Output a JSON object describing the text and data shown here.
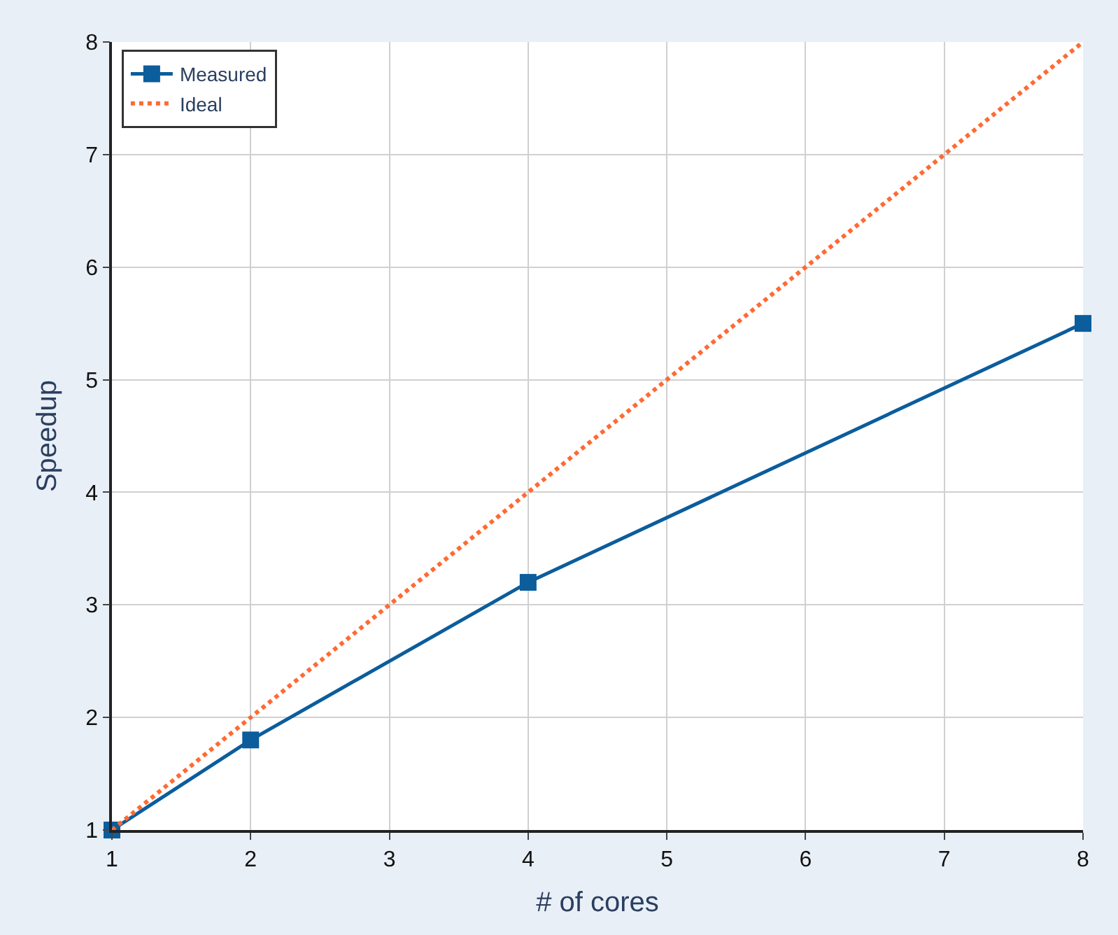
{
  "chart_data": {
    "type": "line",
    "xlabel": "# of cores",
    "ylabel": "Speedup",
    "xlim": [
      1,
      8
    ],
    "xticks": [
      1,
      2,
      3,
      4,
      5,
      6,
      7,
      8
    ],
    "ylim": [
      1,
      8
    ],
    "yticks": [
      1,
      2,
      3,
      4,
      5,
      6,
      7,
      8
    ],
    "grid": true,
    "legend": "top left",
    "series": [
      {
        "name": "Measured",
        "color": "#0b5d9c",
        "x": [
          1,
          2,
          4,
          8
        ],
        "values": [
          1,
          1.8,
          3.2,
          5.5
        ],
        "marker": "square",
        "line_style": "solid"
      },
      {
        "name": "Ideal",
        "color": "#ff6a33",
        "x": [
          1,
          8
        ],
        "values": [
          1,
          8
        ],
        "marker": "none",
        "line_style": "dotted"
      }
    ]
  }
}
